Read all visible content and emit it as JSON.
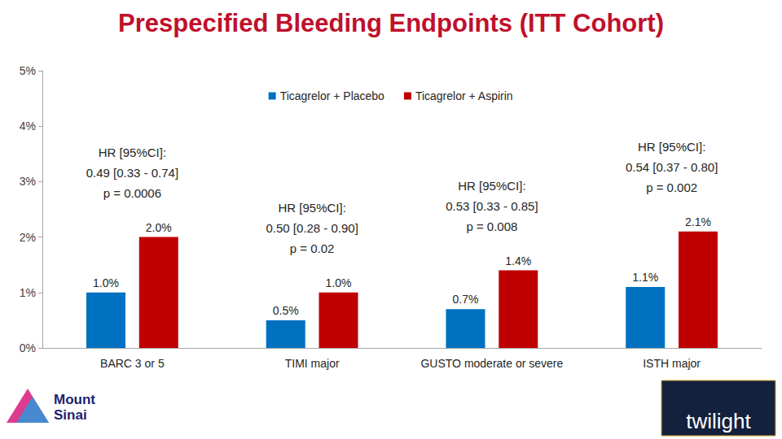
{
  "chart_data": {
    "type": "bar",
    "title": "Prespecified Bleeding Endpoints (ITT Cohort)",
    "categories": [
      "BARC 3 or 5",
      "TIMI major",
      "GUSTO moderate or severe",
      "ISTH major"
    ],
    "series": [
      {
        "name": "Ticagrelor + Placebo",
        "color": "#0070c0",
        "values": [
          1.0,
          0.5,
          0.7,
          1.1
        ],
        "value_labels": [
          "1.0%",
          "0.5%",
          "0.7%",
          "1.1%"
        ]
      },
      {
        "name": "Ticagrelor + Aspirin",
        "color": "#c00000",
        "values": [
          2.0,
          1.0,
          1.4,
          2.1
        ],
        "value_labels": [
          "2.0%",
          "1.0%",
          "1.4%",
          "2.1%"
        ]
      }
    ],
    "ylim": [
      0,
      5
    ],
    "yticks": [
      {
        "value": 0,
        "label": "0%"
      },
      {
        "value": 1,
        "label": "1%"
      },
      {
        "value": 2,
        "label": "2%"
      },
      {
        "value": 3,
        "label": "3%"
      },
      {
        "value": 4,
        "label": "4%"
      },
      {
        "value": 5,
        "label": "5%"
      }
    ],
    "grid": false,
    "legend": "top",
    "data_labels": true,
    "annotations": [
      {
        "category": "BARC 3 or 5",
        "lines": [
          "HR [95%CI]:",
          "0.49 [0.33 - 0.74]",
          "p = 0.0006"
        ]
      },
      {
        "category": "TIMI major",
        "lines": [
          "HR [95%CI]:",
          "0.50 [0.28 - 0.90]",
          "p = 0.02"
        ]
      },
      {
        "category": "GUSTO moderate or severe",
        "lines": [
          "HR [95%CI]:",
          "0.53 [0.33 - 0.85]",
          "p = 0.008"
        ]
      },
      {
        "category": "ISTH major",
        "lines": [
          "HR [95%CI]:",
          "0.54 [0.37 - 0.80]",
          "p = 0.002"
        ]
      }
    ],
    "logo_texts": [
      "Mount Sinai",
      "twilight"
    ]
  }
}
